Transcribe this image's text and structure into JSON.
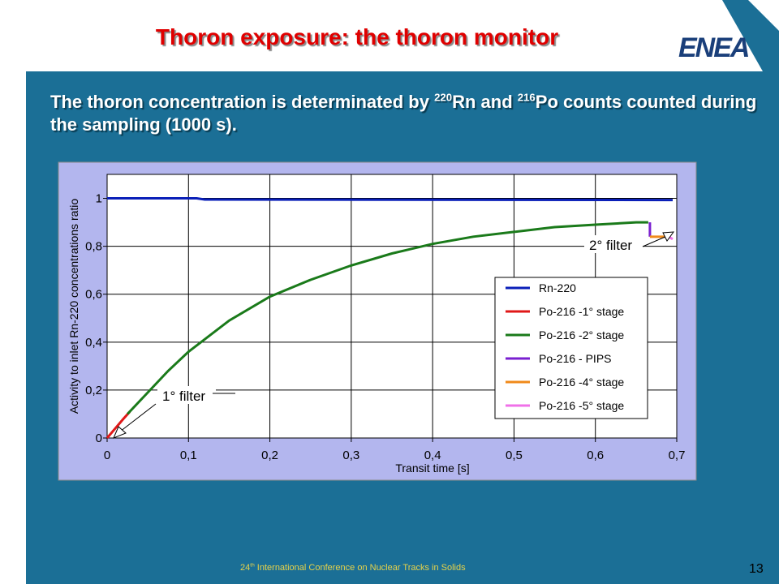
{
  "slide": {
    "title": "Thoron exposure: the thoron monitor",
    "logo": "ENEA",
    "body": [
      "The thoron concentration is determinated by ",
      "220",
      "Rn and ",
      "216",
      "Po counts counted during the sampling (1000 s)."
    ],
    "footer": [
      "24",
      "th",
      " International Conference on Nuclear Tracks in Solids"
    ],
    "page_number": "13"
  },
  "chart_data": {
    "type": "line",
    "xlabel": "Transit time [s]",
    "ylabel": "Activity to inlet Rn-220 concentrations ratio",
    "xlim": [
      0,
      0.7
    ],
    "ylim": [
      0,
      1.1
    ],
    "xticks": [
      0,
      {
        "value": 0.1,
        "label": "0,1"
      },
      {
        "value": 0.2,
        "label": "0,2"
      },
      {
        "value": 0.3,
        "label": "0,3"
      },
      {
        "value": 0.4,
        "label": "0,4"
      },
      {
        "value": 0.5,
        "label": "0,5"
      },
      {
        "value": 0.6,
        "label": "0,6"
      },
      {
        "value": 0.7,
        "label": "0,7"
      }
    ],
    "yticks": [
      0,
      {
        "value": 0.2,
        "label": "0,2"
      },
      {
        "value": 0.4,
        "label": "0,4"
      },
      {
        "value": 0.6,
        "label": "0,6"
      },
      {
        "value": 0.8,
        "label": "0,8"
      },
      1
    ],
    "grid": true,
    "series": [
      {
        "name": "Rn-220",
        "color": "#0a1fb8",
        "x": [
          0,
          0.11,
          0.12,
          0.695
        ],
        "values": [
          1,
          1,
          0.995,
          0.993
        ]
      },
      {
        "name": "Po-216 -1° stage",
        "color": "#e01818",
        "x": [
          0,
          0.01,
          0.02,
          0.028
        ],
        "values": [
          0,
          0.04,
          0.08,
          0.11
        ]
      },
      {
        "name": "Po-216 -2° stage",
        "color": "#1a7a1a",
        "x": [
          0.025,
          0.05,
          0.075,
          0.1,
          0.15,
          0.2,
          0.25,
          0.3,
          0.35,
          0.4,
          0.45,
          0.5,
          0.55,
          0.6,
          0.65,
          0.665
        ],
        "values": [
          0.1,
          0.19,
          0.28,
          0.36,
          0.49,
          0.59,
          0.66,
          0.72,
          0.77,
          0.81,
          0.84,
          0.86,
          0.88,
          0.89,
          0.9,
          0.9
        ]
      },
      {
        "name": "Po-216 - PIPS",
        "color": "#7a1fd0",
        "x": [
          0.667,
          0.667
        ],
        "values": [
          0.9,
          0.84
        ]
      },
      {
        "name": "Po-216 -4° stage",
        "color": "#f08a1a",
        "x": [
          0.667,
          0.69
        ],
        "values": [
          0.84,
          0.84
        ]
      },
      {
        "name": "Po-216 -5° stage",
        "color": "#f070e8",
        "x": [
          0.69,
          0.695
        ],
        "values": [
          0.84,
          0.83
        ]
      }
    ],
    "annotations": [
      "1° filter",
      "2° filter"
    ]
  }
}
